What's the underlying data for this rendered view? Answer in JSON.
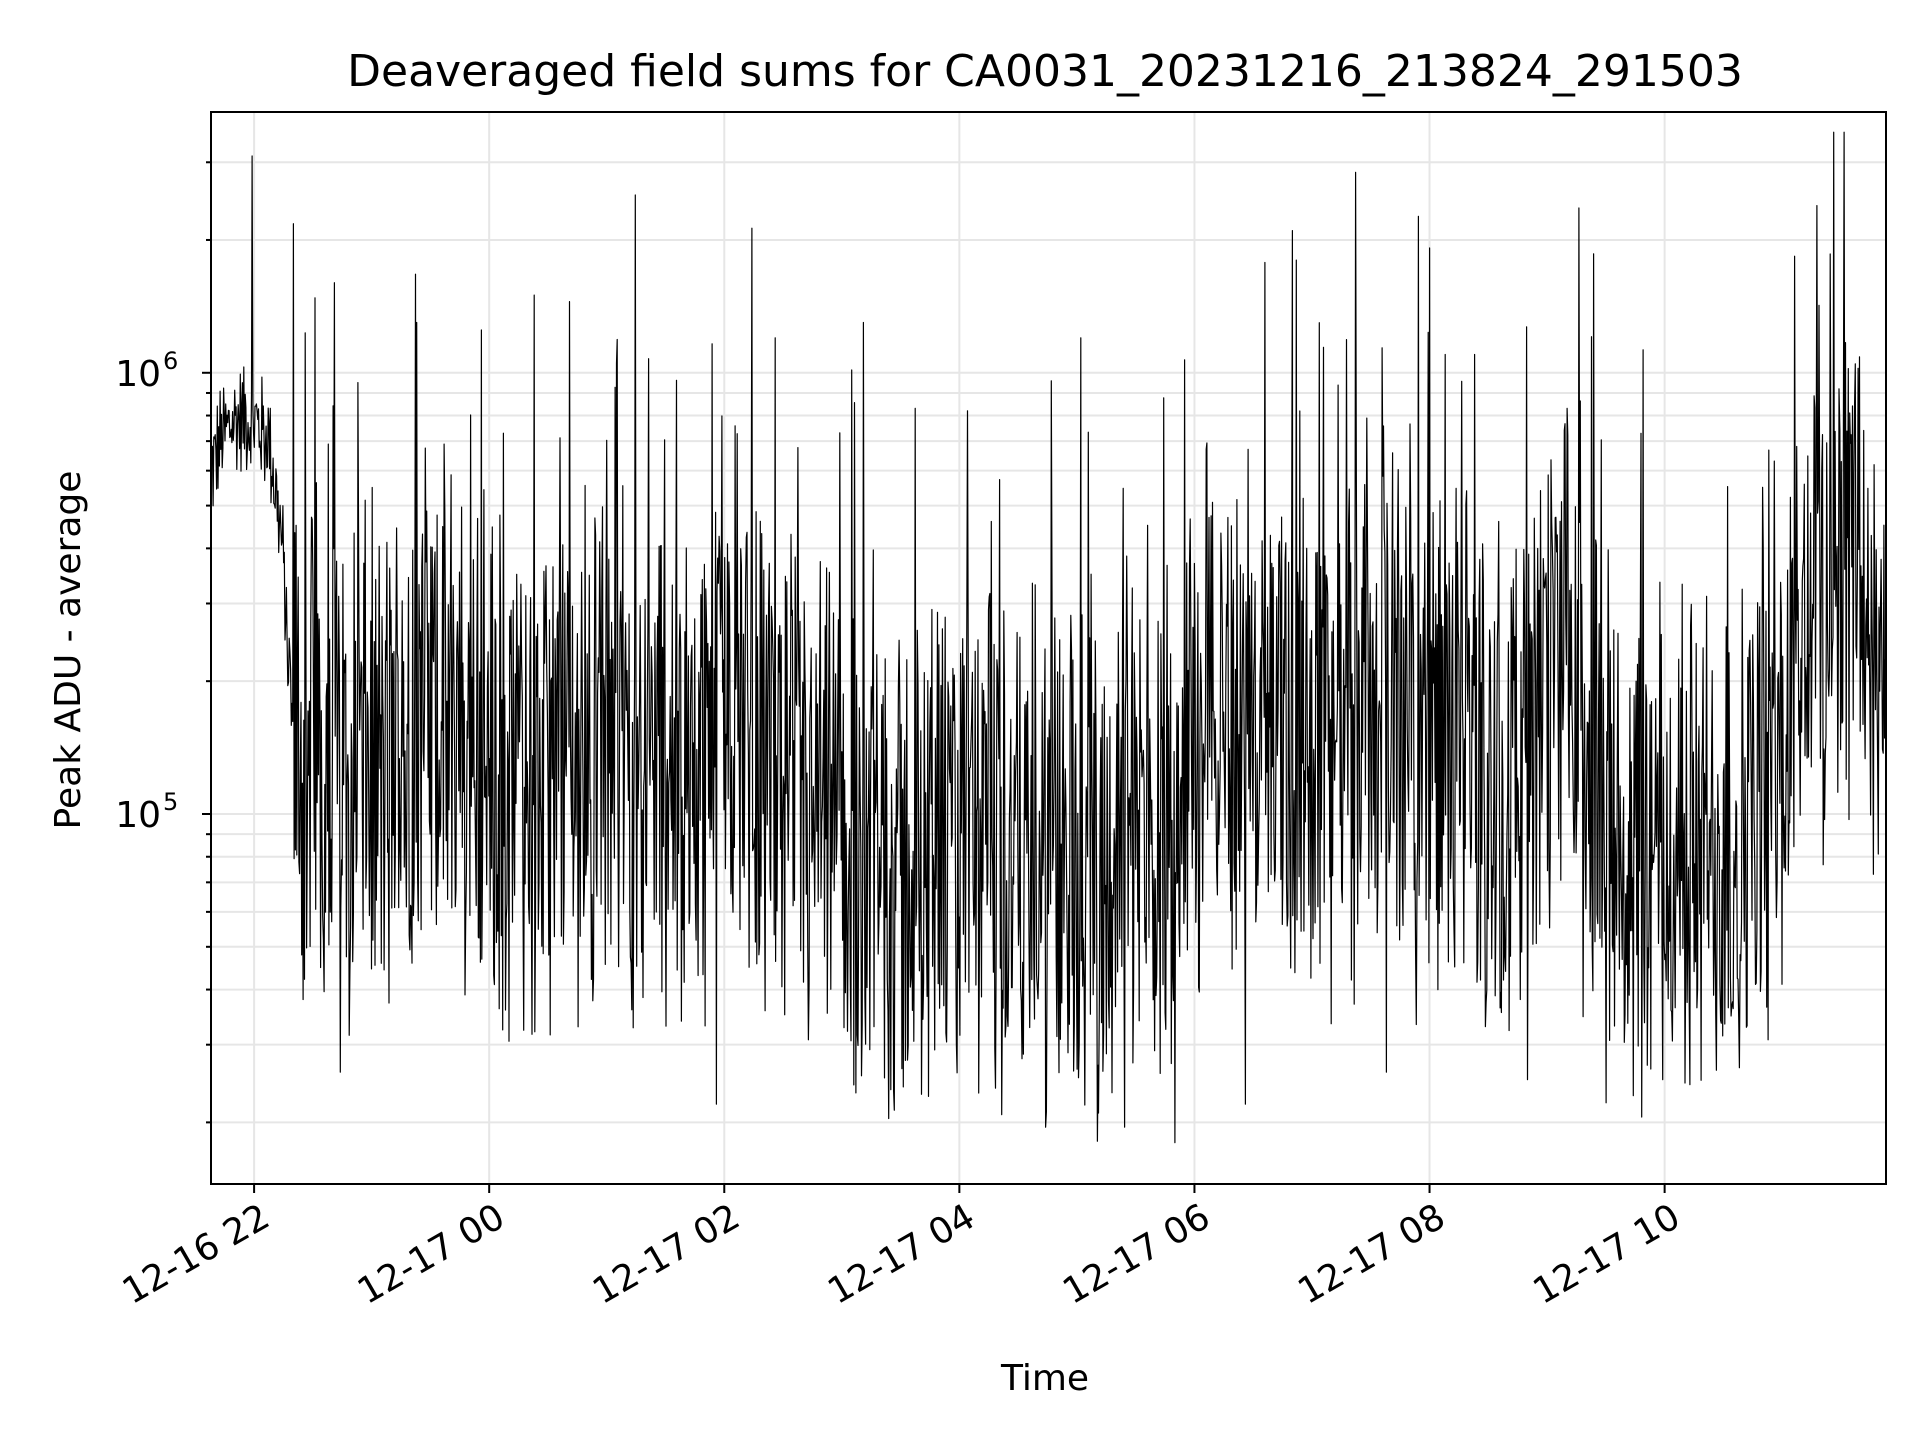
{
  "chart_data": {
    "type": "line",
    "title": "Deaveraged field sums for CA0031_20231216_213824_291503",
    "xlabel": "Time",
    "ylabel": "Peak ADU - average",
    "x_start": "2023-12-16 21:38",
    "x_end": "2023-12-17 11:53",
    "xlim": [
      "2023-12-16 21:38",
      "2023-12-17 11:53"
    ],
    "yscale": "log",
    "ylim": [
      14500,
      3900000
    ],
    "x_ticks": [
      {
        "x": "2023-12-16 22:00",
        "label": "12-16 22"
      },
      {
        "x": "2023-12-17 00:00",
        "label": "12-17 00"
      },
      {
        "x": "2023-12-17 02:00",
        "label": "12-17 02"
      },
      {
        "x": "2023-12-17 04:00",
        "label": "12-17 04"
      },
      {
        "x": "2023-12-17 06:00",
        "label": "12-17 06"
      },
      {
        "x": "2023-12-17 08:00",
        "label": "12-17 08"
      },
      {
        "x": "2023-12-17 10:00",
        "label": "12-17 10"
      }
    ],
    "y_ticks": [
      {
        "value": 100000,
        "base": "10",
        "exp": "5"
      },
      {
        "value": 1000000,
        "base": "10",
        "exp": "6"
      }
    ],
    "grid": true,
    "line_color": "#000000",
    "grid_color": "#e6e6e6",
    "series": [
      {
        "x_hours_from_start": [
          0.0,
          0.1,
          0.2,
          0.3,
          0.4,
          0.5,
          0.6,
          0.7,
          0.8,
          1.0,
          1.2,
          1.5,
          1.8,
          2.1,
          2.5,
          3.0,
          3.5,
          4.0,
          4.5,
          5.0,
          5.5,
          6.0,
          6.5,
          7.0,
          7.5,
          8.0,
          8.5,
          9.0,
          9.5,
          10.0,
          10.5,
          11.0,
          11.5,
          12.0,
          12.5,
          13.0,
          13.3,
          13.6,
          14.0,
          14.25
        ],
        "values": [
          600000,
          720000,
          780000,
          800000,
          760000,
          700000,
          420000,
          150000,
          110000,
          140000,
          130000,
          120000,
          170000,
          150000,
          110000,
          130000,
          140000,
          120000,
          200000,
          95000,
          80000,
          70000,
          85000,
          75000,
          80000,
          90000,
          170000,
          150000,
          160000,
          170000,
          140000,
          110000,
          200000,
          80000,
          80000,
          85000,
          110000,
          300000,
          420000,
          120000
        ],
        "spikes": [
          {
            "t": 0.35,
            "value": 3100000
          },
          {
            "t": 1.05,
            "value": 1600000
          },
          {
            "t": 1.25,
            "value": 950000
          },
          {
            "t": 1.75,
            "value": 1300000
          },
          {
            "t": 2.3,
            "value": 1250000
          },
          {
            "t": 2.75,
            "value": 1500000
          },
          {
            "t": 3.05,
            "value": 1450000
          },
          {
            "t": 3.45,
            "value": 1050000
          },
          {
            "t": 4.8,
            "value": 1200000
          },
          {
            "t": 5.55,
            "value": 1300000
          },
          {
            "t": 7.4,
            "value": 1200000
          },
          {
            "t": 9.2,
            "value": 2100000
          },
          {
            "t": 10.5,
            "value": 1100000
          },
          {
            "t": 10.75,
            "value": 1100000
          },
          {
            "t": 13.2,
            "value": 550000
          },
          {
            "t": 13.85,
            "value": 920000
          }
        ],
        "dips": [
          {
            "t": 1.1,
            "value": 26000
          },
          {
            "t": 4.3,
            "value": 22000
          },
          {
            "t": 7.1,
            "value": 19500
          },
          {
            "t": 7.55,
            "value": 21000
          },
          {
            "t": 8.2,
            "value": 18000
          },
          {
            "t": 8.8,
            "value": 22000
          },
          {
            "t": 10.0,
            "value": 26000
          },
          {
            "t": 11.2,
            "value": 25000
          },
          {
            "t": 12.1,
            "value": 23000
          },
          {
            "t": 12.35,
            "value": 25000
          }
        ]
      }
    ]
  }
}
